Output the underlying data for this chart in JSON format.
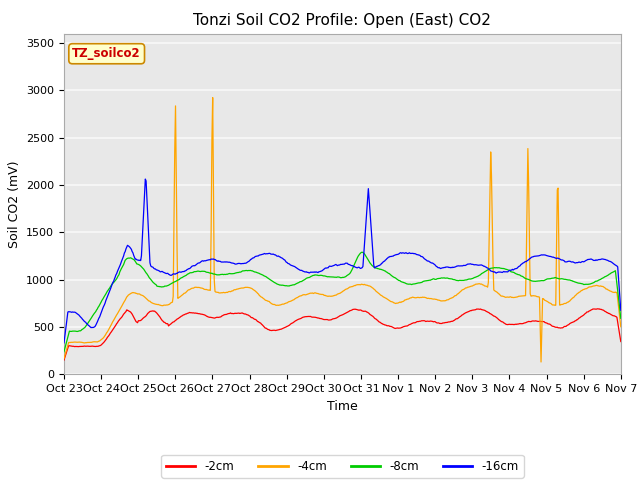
{
  "title": "Tonzi Soil CO2 Profile: Open (East) CO2",
  "ylabel": "Soil CO2 (mV)",
  "xlabel": "Time",
  "label_box": "TZ_soilco2",
  "ylim": [
    0,
    3600
  ],
  "yticks": [
    0,
    500,
    1000,
    1500,
    2000,
    2500,
    3000,
    3500
  ],
  "xtick_labels": [
    "Oct 23",
    "Oct 24",
    "Oct 25",
    "Oct 26",
    "Oct 27",
    "Oct 28",
    "Oct 29",
    "Oct 30",
    "Oct 31",
    "Nov 1",
    "Nov 2",
    "Nov 3",
    "Nov 4",
    "Nov 5",
    "Nov 6",
    "Nov 7"
  ],
  "colors": {
    "2cm": "#ff0000",
    "4cm": "#ffa500",
    "8cm": "#00cc00",
    "16cm": "#0000ff"
  },
  "legend_labels": [
    "-2cm",
    "-4cm",
    "-8cm",
    "-16cm"
  ],
  "fig_bg_color": "#ffffff",
  "plot_bg_color": "#e8e8e8",
  "grid_color": "#f8f8f8",
  "title_fontsize": 11,
  "label_fontsize": 9,
  "tick_fontsize": 8
}
